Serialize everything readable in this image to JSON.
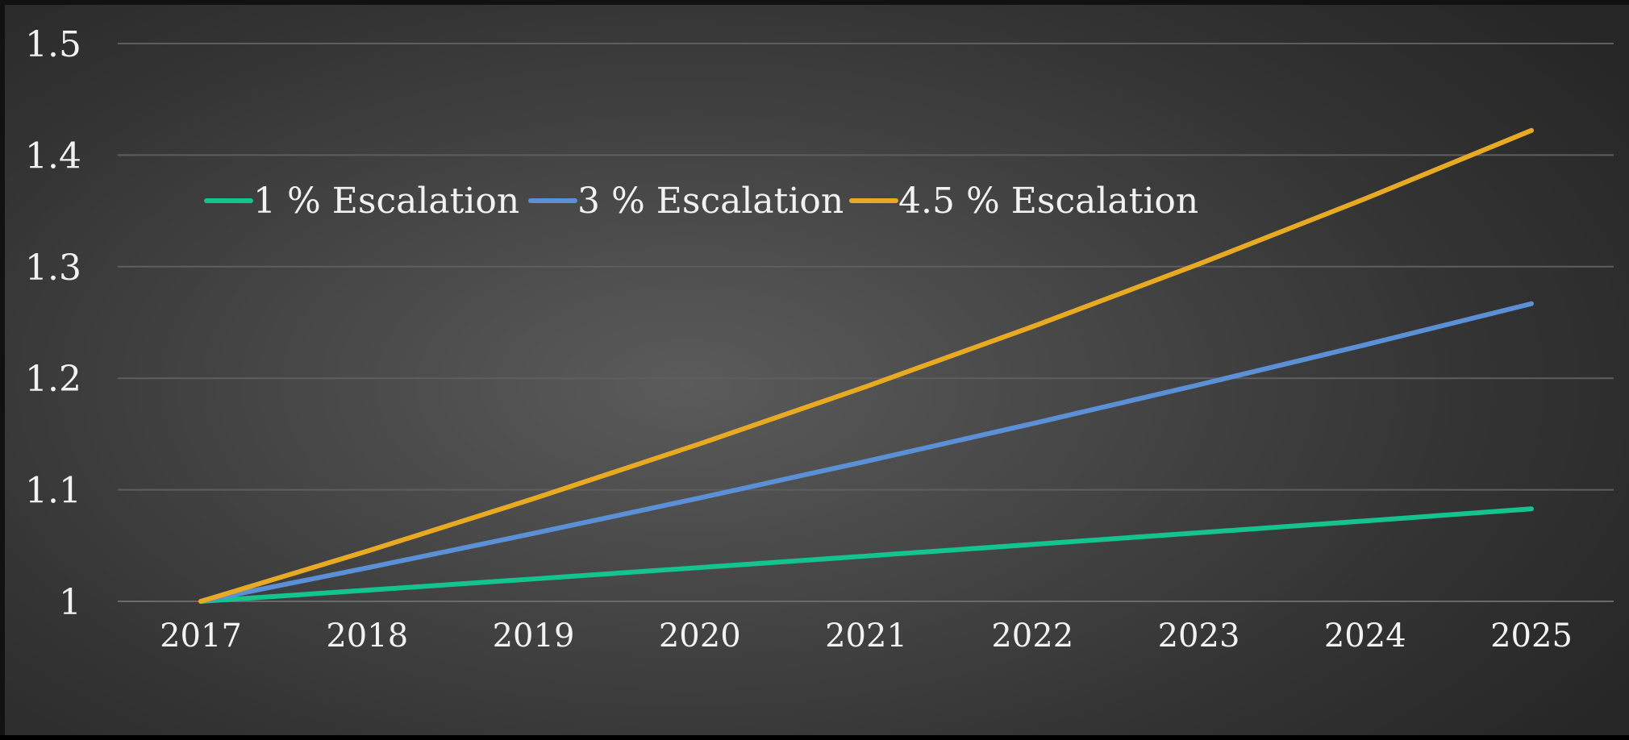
{
  "chart_data": {
    "type": "line",
    "title": "",
    "xlabel": "",
    "ylabel": "",
    "x": [
      "2017",
      "2018",
      "2019",
      "2020",
      "2021",
      "2022",
      "2023",
      "2024",
      "2025"
    ],
    "ylim": [
      1,
      1.5
    ],
    "yticks": [
      "1",
      "1.1",
      "1.2",
      "1.3",
      "1.4",
      "1.5"
    ],
    "grid": true,
    "legend_position": "top-left",
    "series": [
      {
        "name": "1 % Escalation",
        "color": "#13c48f",
        "values": [
          1.0,
          1.01,
          1.0201,
          1.0303,
          1.0406,
          1.051,
          1.0615,
          1.0721,
          1.0829
        ]
      },
      {
        "name": "3 % Escalation",
        "color": "#5b8fd6",
        "values": [
          1.0,
          1.03,
          1.0609,
          1.0927,
          1.1255,
          1.1593,
          1.1941,
          1.2299,
          1.2668
        ]
      },
      {
        "name": "4.5 % Escalation",
        "color": "#e7aa22",
        "values": [
          1.0,
          1.045,
          1.092,
          1.1412,
          1.1925,
          1.2462,
          1.3023,
          1.3609,
          1.4221
        ]
      }
    ]
  }
}
